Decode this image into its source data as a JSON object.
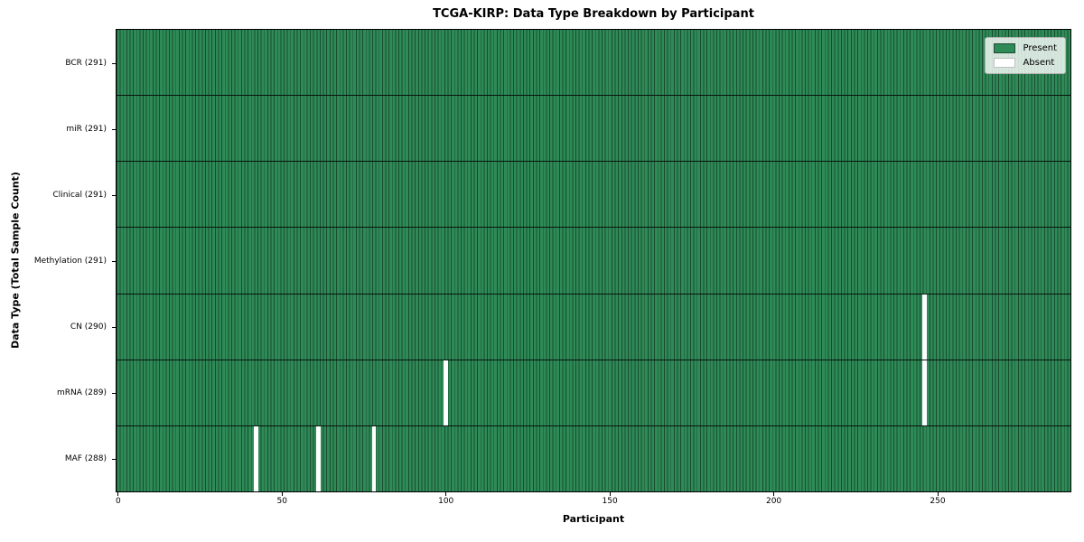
{
  "chart_data": {
    "type": "heatmap",
    "title": "TCGA-KIRP: Data Type Breakdown by Participant",
    "xlabel": "Participant",
    "ylabel": "Data Type (Total Sample Count)",
    "legend_entries": [
      "Present",
      "Absent"
    ],
    "legend_position": "upper right",
    "n_participants": 291,
    "x_ticks": [
      0,
      50,
      100,
      150,
      200,
      250
    ],
    "present_color": "#2e8b57",
    "absent_color": "#ffffff",
    "rows": [
      {
        "key": "bcr",
        "data_type": "BCR",
        "label": "BCR (291)",
        "present_count": 291,
        "absent_participants": []
      },
      {
        "key": "mir",
        "data_type": "miR",
        "label": "miR (291)",
        "present_count": 291,
        "absent_participants": []
      },
      {
        "key": "clinical",
        "data_type": "Clinical",
        "label": "Clinical (291)",
        "present_count": 291,
        "absent_participants": []
      },
      {
        "key": "methylation",
        "data_type": "Methylation",
        "label": "Methylation (291)",
        "present_count": 291,
        "absent_participants": []
      },
      {
        "key": "cn",
        "data_type": "CN",
        "label": "CN (290)",
        "present_count": 290,
        "absent_participants": [
          246
        ]
      },
      {
        "key": "mrna",
        "data_type": "mRNA",
        "label": "mRNA (289)",
        "present_count": 289,
        "absent_participants": [
          100,
          246
        ]
      },
      {
        "key": "maf",
        "data_type": "MAF",
        "label": "MAF (288)",
        "present_count": 288,
        "absent_participants": [
          42,
          61,
          78
        ]
      }
    ]
  }
}
